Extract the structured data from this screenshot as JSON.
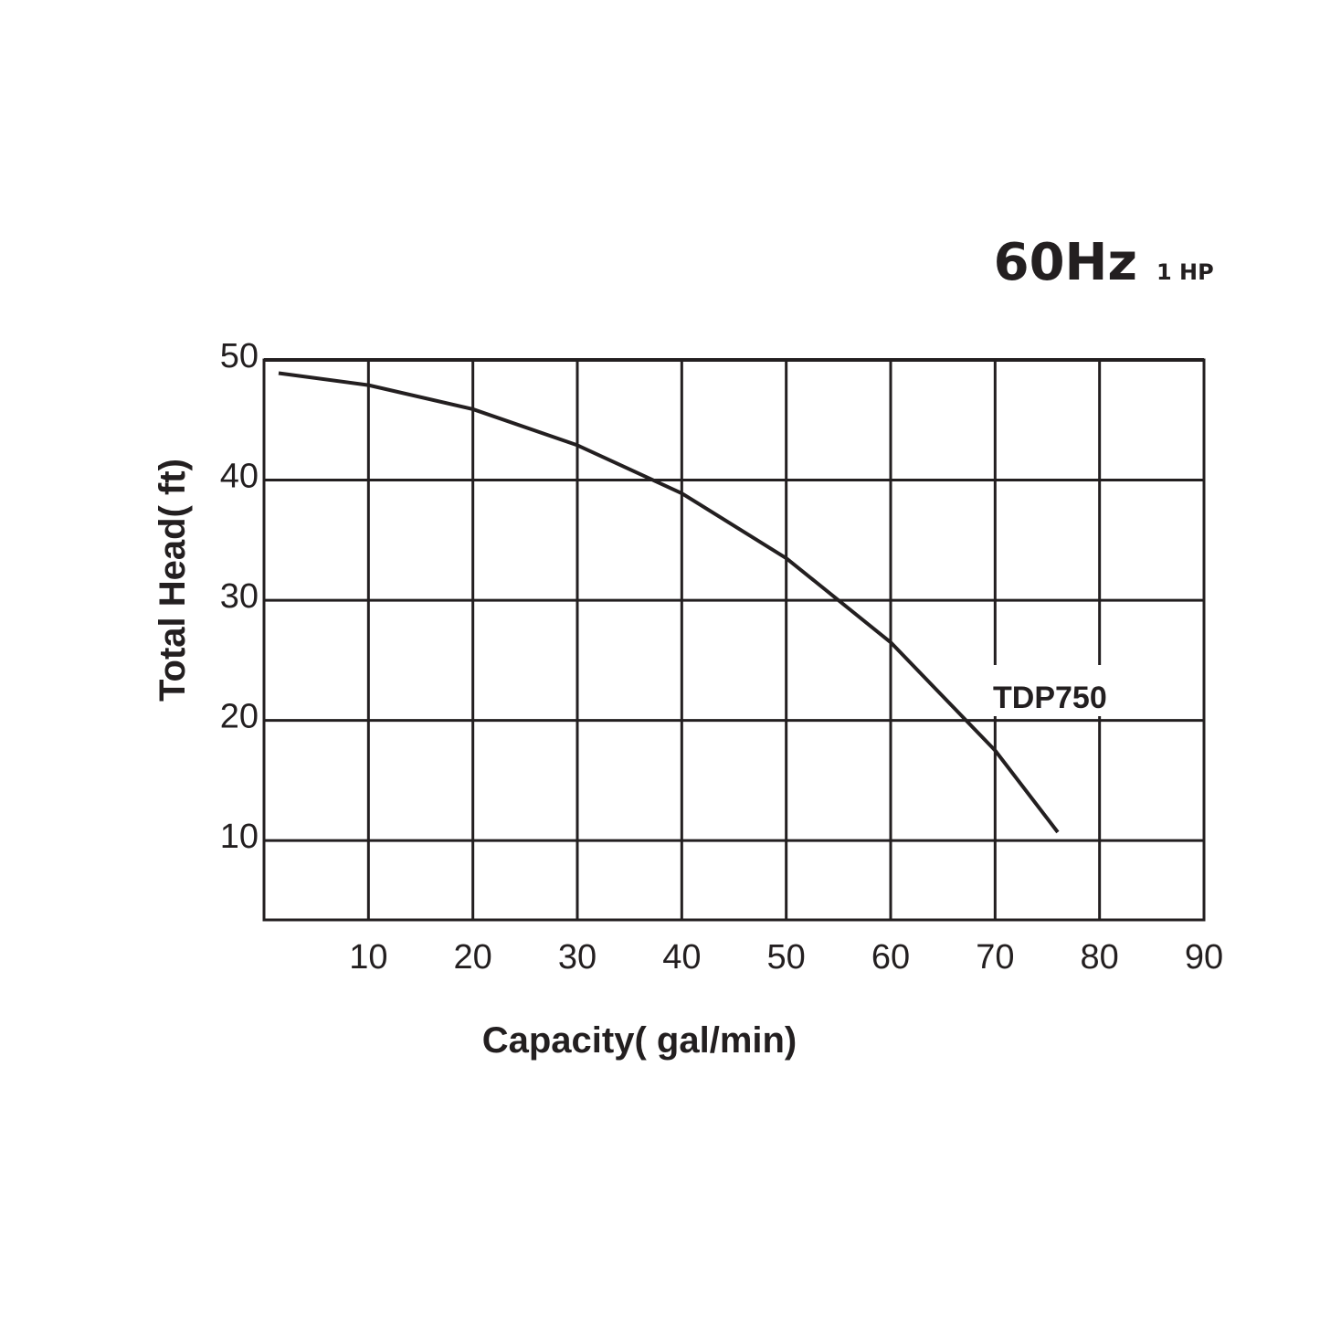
{
  "chart_data": {
    "type": "line",
    "title": "60Hz",
    "subtitle": "1 HP",
    "x_label": "Capacity( gal/min)",
    "y_label": "Total Head( ft)",
    "x": [
      1.4,
      10,
      20,
      30,
      40,
      50,
      60,
      70,
      76
    ],
    "series": [
      {
        "name": "TDP750",
        "color": "#231f20",
        "values": [
          48.9,
          47.9,
          45.9,
          42.9,
          38.9,
          33.5,
          26.5,
          17.5,
          10.7
        ]
      }
    ],
    "xlim": [
      0,
      90
    ],
    "xticks": [
      10,
      20,
      30,
      40,
      50,
      60,
      70,
      80,
      90
    ],
    "ylim": [
      3.4,
      50
    ],
    "yticks": [
      10,
      20,
      30,
      40,
      50
    ],
    "grid": true
  }
}
